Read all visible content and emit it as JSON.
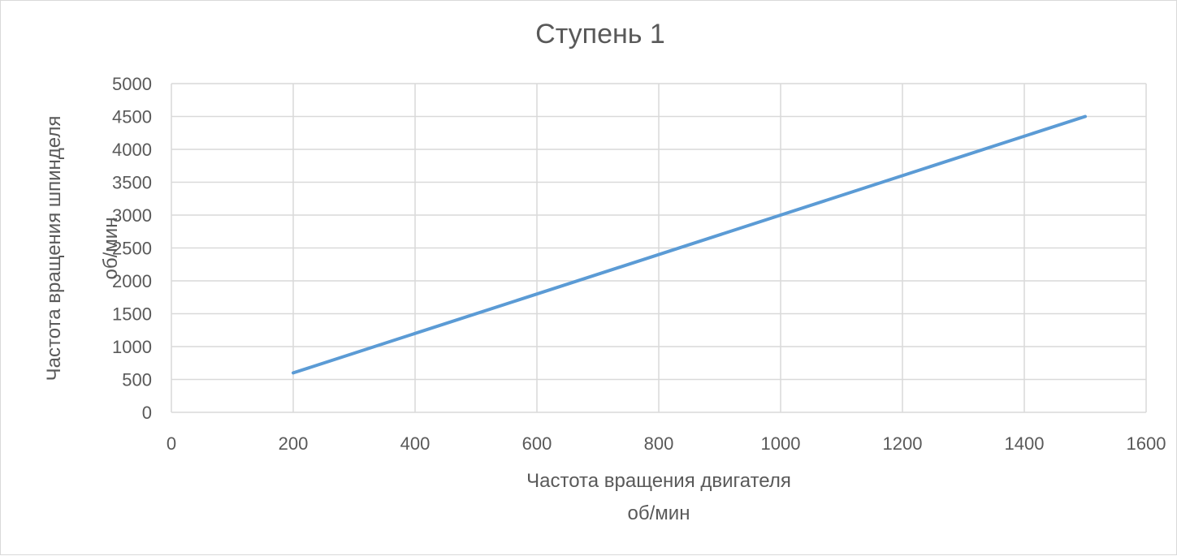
{
  "chart_data": {
    "type": "line",
    "title": "Ступень 1",
    "xlabel_lines": [
      "Частота вращения двигателя",
      "об/мин"
    ],
    "ylabel_lines": [
      "Частота вращения шпинделя",
      "об/мин"
    ],
    "xlim": [
      0,
      1600
    ],
    "ylim": [
      0,
      5000
    ],
    "x_ticks": [
      0,
      200,
      400,
      600,
      800,
      1000,
      1200,
      1400,
      1600
    ],
    "y_ticks": [
      0,
      500,
      1000,
      1500,
      2000,
      2500,
      3000,
      3500,
      4000,
      4500,
      5000
    ],
    "grid": true,
    "legend": "none",
    "series": [
      {
        "x": [
          200,
          1500
        ],
        "y": [
          600,
          4500
        ]
      }
    ]
  },
  "colors": {
    "series": "#5b9bd5",
    "grid": "#d9d9d9",
    "text": "#595959"
  }
}
